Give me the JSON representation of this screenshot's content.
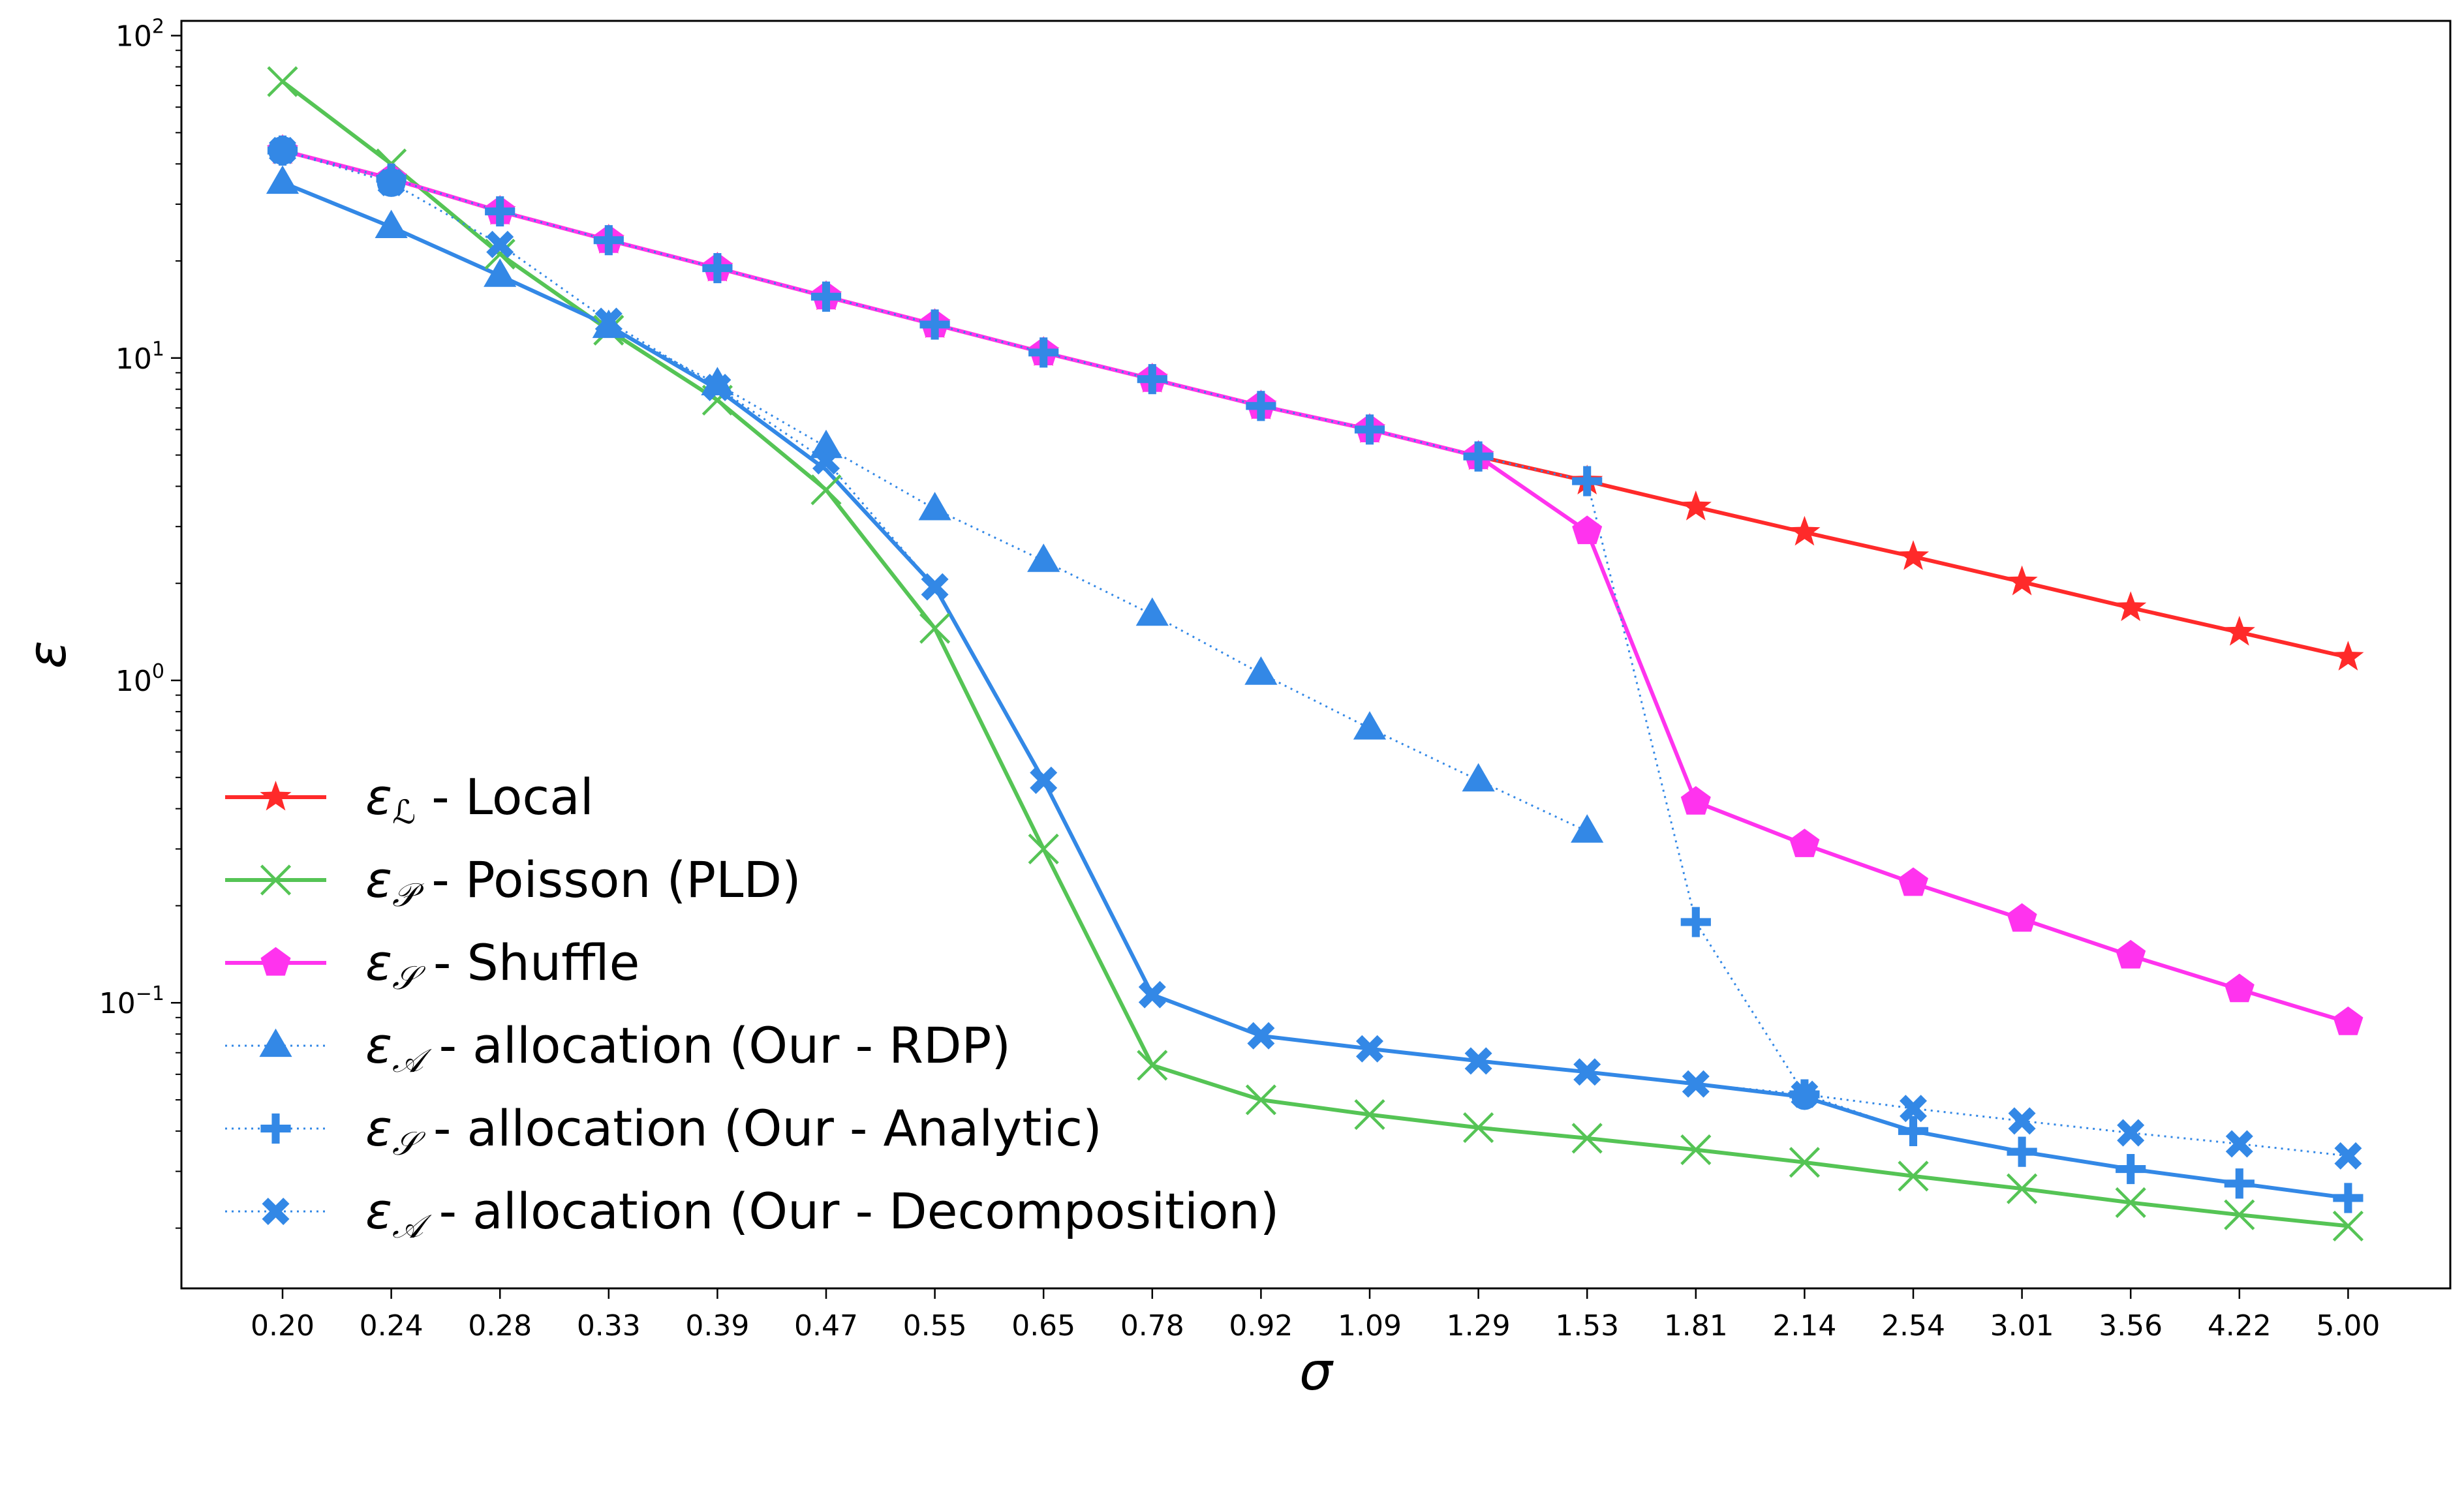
{
  "chart_data": {
    "type": "line",
    "title": "",
    "xlabel": "σ",
    "ylabel": "ε",
    "y_scale": "log",
    "ylim": [
      0.015,
      100
    ],
    "y_tick_labels": [
      {
        "value": 100,
        "base": "10",
        "exp": "2"
      },
      {
        "value": 10,
        "base": "10",
        "exp": "1"
      },
      {
        "value": 1,
        "base": "10",
        "exp": "0"
      },
      {
        "value": 0.1,
        "base": "10",
        "exp": "−1"
      }
    ],
    "categories": [
      "0.20",
      "0.24",
      "0.28",
      "0.33",
      "0.39",
      "0.47",
      "0.55",
      "0.65",
      "0.78",
      "0.92",
      "1.09",
      "1.29",
      "1.53",
      "1.81",
      "2.14",
      "2.54",
      "3.01",
      "3.56",
      "4.22",
      "5.00"
    ],
    "grid": false,
    "legend_position": "lower-left",
    "series": [
      {
        "name": "Local",
        "symbol": "ε",
        "subscript": "ℒ",
        "color": "#ff2a2a",
        "marker": "star",
        "line": "solid",
        "marker_on_both_ends_only": false,
        "values": [
          44,
          36,
          28.5,
          23.2,
          19,
          15.5,
          12.7,
          10.4,
          8.6,
          7.1,
          6,
          4.95,
          4.15,
          3.45,
          2.88,
          2.42,
          2.02,
          1.68,
          1.41,
          1.18
        ]
      },
      {
        "name": "Poisson (PLD)",
        "symbol": "ε",
        "subscript": "𝒫",
        "color": "#55c455",
        "marker": "x",
        "line": "solid",
        "values": [
          72,
          40,
          21,
          12.2,
          7.4,
          3.9,
          1.45,
          0.3,
          0.064,
          0.05,
          0.045,
          0.041,
          0.038,
          0.035,
          0.032,
          0.029,
          0.0265,
          0.024,
          0.022,
          0.0203
        ]
      },
      {
        "name": "Shuffle",
        "symbol": "ε",
        "subscript": "𝒮",
        "color": "#ff33ee",
        "marker": "pentagon",
        "line": "solid",
        "values": [
          44,
          36,
          28.5,
          23.2,
          19,
          15.5,
          12.7,
          10.4,
          8.6,
          7.1,
          6,
          4.95,
          2.9,
          0.42,
          0.31,
          0.235,
          0.182,
          0.14,
          0.11,
          0.087
        ]
      },
      {
        "name": "allocation (Our - RDP)",
        "symbol": "ε",
        "subscript": "𝒜",
        "color": "#3388e6",
        "marker": "triangle",
        "line": "dotted",
        "values": [
          35,
          25.5,
          18,
          12.5,
          8.3,
          5.3,
          3.4,
          2.35,
          1.6,
          1.05,
          0.71,
          0.49,
          0.34,
          null,
          null,
          null,
          null,
          null,
          null,
          null
        ]
      },
      {
        "name": "allocation (Our - Analytic)",
        "symbol": "ε",
        "subscript": "𝒮",
        "color": "#3388e6",
        "marker": "plus",
        "line": "dotted",
        "values": [
          44,
          36,
          28.5,
          23.2,
          19,
          15.5,
          12.7,
          10.4,
          8.6,
          7.1,
          6,
          4.95,
          4.15,
          0.178,
          0.052,
          0.04,
          0.0345,
          0.0305,
          0.0275,
          0.0248
        ]
      },
      {
        "name": "allocation (Our - Decomposition)",
        "symbol": "ε",
        "subscript": "𝒜",
        "color": "#3388e6",
        "marker": "xfilled",
        "line": "dotted",
        "values": [
          44,
          35,
          22.5,
          13,
          8.1,
          4.8,
          1.95,
          0.49,
          0.106,
          0.079,
          0.072,
          0.066,
          0.061,
          0.056,
          0.052,
          0.047,
          0.043,
          0.0395,
          0.0365,
          0.0335
        ]
      }
    ],
    "extra_solid_overlay": {
      "description_free": true,
      "color": "#3388e6",
      "values": [
        35,
        25.5,
        18,
        12.6,
        8,
        4.5,
        1.95,
        0.49,
        0.106,
        0.079,
        0.072,
        0.066,
        0.061,
        0.056,
        0.051,
        0.04,
        0.0345,
        0.0305,
        0.0275,
        0.0248
      ]
    },
    "legend_separator": " - "
  }
}
